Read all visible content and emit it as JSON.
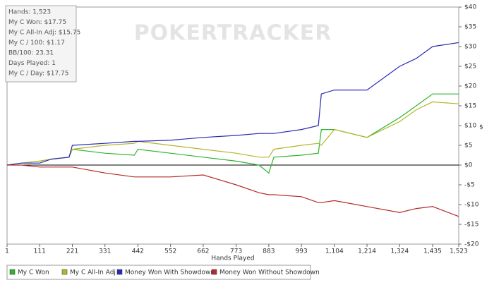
{
  "chart_data": {
    "type": "line",
    "watermark": "POKERTRACKER",
    "stats": [
      "Hands: 1,523",
      "My C Won: $17.75",
      "My C All-In Adj: $15.75",
      "My C / 100: $1.17",
      "BB/100: 23.31",
      "Days Played: 1",
      "My C / Day: $17.75"
    ],
    "x_label": "Hands Played",
    "y_label": "$",
    "x": [
      1,
      50,
      111,
      150,
      210,
      221,
      331,
      430,
      442,
      552,
      662,
      773,
      850,
      883,
      900,
      993,
      1050,
      1060,
      1104,
      1214,
      1324,
      1380,
      1435,
      1523
    ],
    "series": [
      {
        "name": "My C Won",
        "color": "#2db52d",
        "values": [
          0,
          0.5,
          1,
          1.5,
          2,
          4,
          3,
          2.5,
          4,
          3,
          2,
          1,
          0,
          -2,
          2,
          2.5,
          3,
          9,
          9,
          7,
          12,
          15,
          18,
          18
        ]
      },
      {
        "name": "My C All-In Adj",
        "color": "#b5b52a",
        "values": [
          0,
          0.5,
          1,
          1.5,
          2,
          4,
          5,
          5.5,
          6,
          5,
          4,
          3,
          2,
          2,
          4,
          5,
          5.5,
          5,
          9,
          7,
          11,
          14,
          16,
          15.5
        ]
      },
      {
        "name": "Money Won With Showdown",
        "color": "#2a2ab5",
        "values": [
          0,
          0.5,
          0.5,
          1.5,
          2,
          5,
          5.5,
          6,
          6,
          6.3,
          7,
          7.5,
          8,
          8,
          8,
          9,
          10,
          18,
          19,
          19,
          25,
          27,
          30,
          31
        ]
      },
      {
        "name": "Money Won Without Showdown",
        "color": "#b52a2a",
        "values": [
          0,
          0,
          -0.5,
          -0.5,
          -0.5,
          -0.5,
          -2,
          -3,
          -3,
          -3,
          -2.5,
          -5,
          -7,
          -7.5,
          -7.5,
          -8,
          -9.5,
          -9.5,
          -9,
          -10.5,
          -12,
          -11,
          -10.5,
          -13
        ]
      }
    ],
    "xlim": [
      1,
      1523
    ],
    "xticks": [
      1,
      111,
      221,
      331,
      442,
      552,
      662,
      773,
      883,
      993,
      {
        "value": 1104,
        "label": "1,104"
      },
      {
        "value": 1214,
        "label": "1,214"
      },
      {
        "value": 1324,
        "label": "1,324"
      },
      {
        "value": 1435,
        "label": "1,435"
      },
      {
        "value": 1523,
        "label": "1,523"
      }
    ],
    "ylim": [
      -20,
      40
    ],
    "yticks": [
      {
        "value": -20,
        "label": "-$20"
      },
      {
        "value": -15,
        "label": "-$15"
      },
      {
        "value": -10,
        "label": "-$10"
      },
      {
        "value": -5,
        "label": "-$5"
      },
      {
        "value": 0,
        "label": "$0"
      },
      {
        "value": 5,
        "label": "$5"
      },
      {
        "value": 10,
        "label": "$10"
      },
      {
        "value": 15,
        "label": "$15"
      },
      {
        "value": 20,
        "label": "$20"
      },
      {
        "value": 25,
        "label": "$25"
      },
      {
        "value": 30,
        "label": "$30"
      },
      {
        "value": 35,
        "label": "$35"
      },
      {
        "value": 40,
        "label": "$40"
      }
    ]
  }
}
